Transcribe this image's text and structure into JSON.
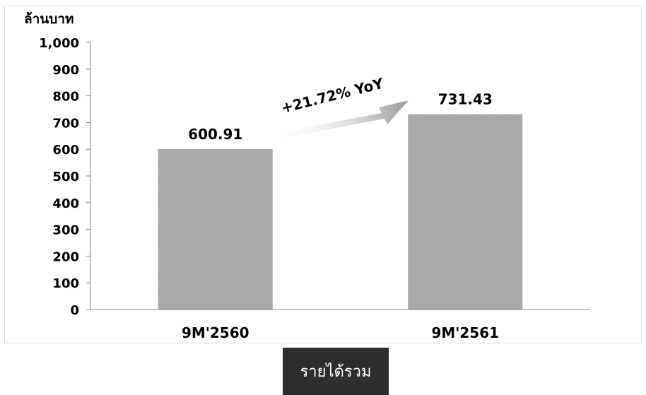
{
  "chart_data": {
    "type": "bar",
    "ylabel": "ล้านบาท",
    "categories": [
      "9M'2560",
      "9M'2561"
    ],
    "values": [
      600.91,
      731.43
    ],
    "value_labels": [
      "600.91",
      "731.43"
    ],
    "ylim": [
      0,
      1000
    ],
    "yticks": [
      0,
      100,
      200,
      300,
      400,
      500,
      600,
      700,
      800,
      900,
      1000
    ],
    "ytick_labels": [
      "0",
      "100",
      "200",
      "300",
      "400",
      "500",
      "600",
      "700",
      "800",
      "900",
      "1,000"
    ],
    "annotation": "+21.72% YoY",
    "grid": false,
    "bar_color": "#a6a6a6"
  },
  "caption": "รายได้รวม"
}
